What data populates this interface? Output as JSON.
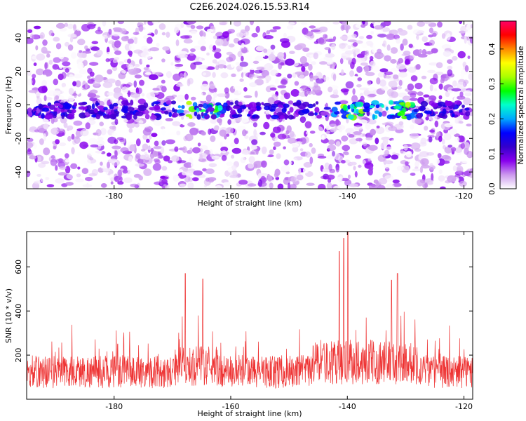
{
  "title": "C2E6.2024.026.15.53.R14",
  "chart_data": [
    {
      "type": "heatmap",
      "xlabel": "Height of straight line (km)",
      "ylabel": "Frequency (Hz)",
      "xlim": [
        -195,
        -118.5
      ],
      "ylim": [
        -50,
        50
      ],
      "xticks": [
        -180,
        -160,
        -140,
        -120
      ],
      "yticks": [
        -40,
        -20,
        0,
        20,
        40
      ],
      "colorbar": {
        "label": "Normalized spectral amplitude",
        "range": [
          0,
          0.48
        ],
        "ticks": [
          "0.0",
          "0.1",
          "0.2",
          "0.3",
          "0.4"
        ],
        "tick_values": [
          0,
          0.1,
          0.2,
          0.3,
          0.4
        ],
        "colormap": [
          "#ffffff",
          "#cc99ee",
          "#8800ee",
          "#3300cc",
          "#0000ff",
          "#00aaff",
          "#00ffcc",
          "#00ff00",
          "#aaff00",
          "#ffff00",
          "#ff8800",
          "#ff0000",
          "#ff0066"
        ]
      },
      "features": [
        {
          "description": "horizontal band near 0 Hz",
          "x_range": [
            -195,
            -118.5
          ],
          "y_center": -3,
          "peaks_x": [
            -167,
            -163,
            -140,
            -137,
            -134,
            -130
          ]
        }
      ]
    },
    {
      "type": "line",
      "xlabel": "Height of straight line (km)",
      "ylabel": "SNR (10 * v/v)",
      "xlim": [
        -195,
        -118.5
      ],
      "ylim": [
        0,
        760
      ],
      "xticks": [
        -180,
        -160,
        -140,
        -120
      ],
      "yticks": [
        200,
        400,
        600
      ],
      "color": "#ee3333",
      "baseline_mean": 125,
      "notable_peaks": [
        {
          "x": -167.8,
          "y": 570
        },
        {
          "x": -164.8,
          "y": 545
        },
        {
          "x": -141.4,
          "y": 670
        },
        {
          "x": -140.6,
          "y": 730
        },
        {
          "x": -139.9,
          "y": 760
        },
        {
          "x": -131.4,
          "y": 570
        },
        {
          "x": -132.4,
          "y": 540
        }
      ]
    }
  ]
}
